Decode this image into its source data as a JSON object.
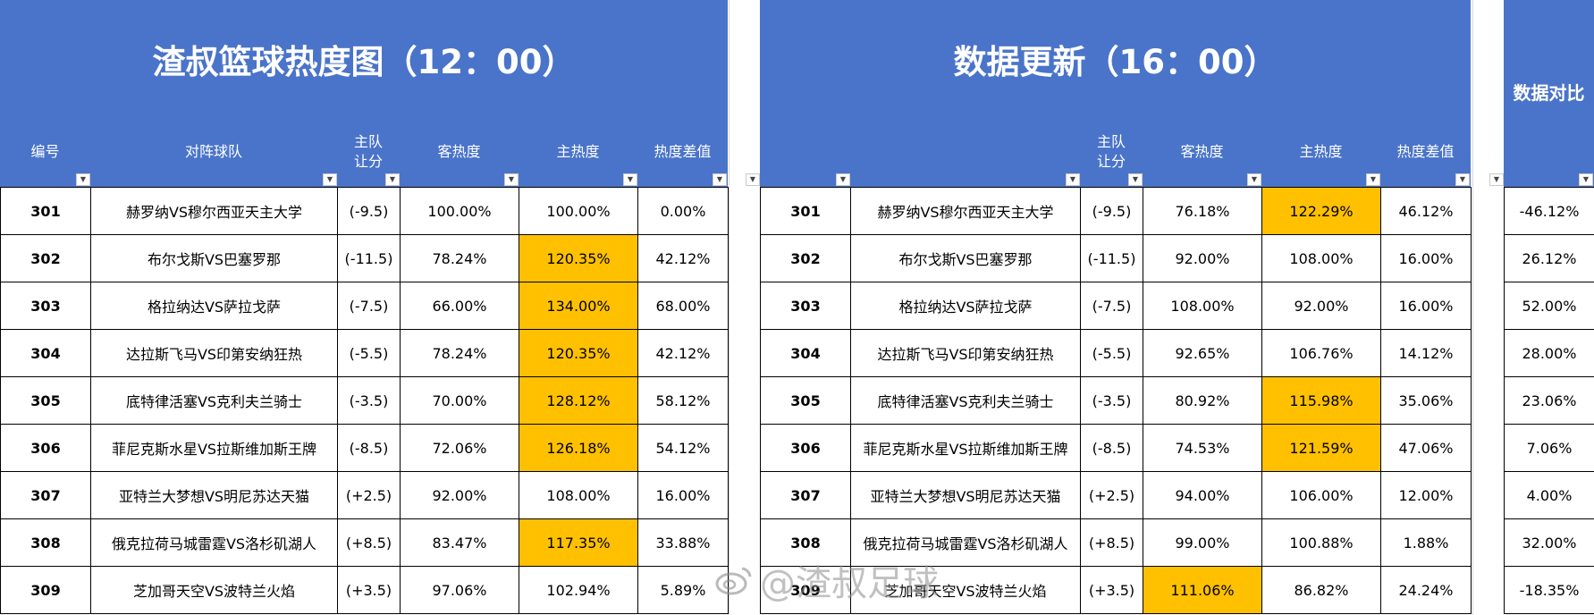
{
  "left": {
    "title": "渣叔篮球热度图（12：00）",
    "headers": [
      "编号",
      "对阵球队",
      "主队\n让分",
      "客热度",
      "主热度",
      "热度差值"
    ],
    "rows": [
      {
        "id": "301",
        "match": "赫罗纳VS穆尔西亚天主大学",
        "handicap": "(-9.5)",
        "away": "100.00%",
        "home": "100.00%",
        "diff": "0.00%"
      },
      {
        "id": "302",
        "match": "布尔戈斯VS巴塞罗那",
        "handicap": "(-11.5)",
        "away": "78.24%",
        "home": "120.35%",
        "diff": "42.12%"
      },
      {
        "id": "303",
        "match": "格拉纳达VS萨拉戈萨",
        "handicap": "(-7.5)",
        "away": "66.00%",
        "home": "134.00%",
        "diff": "68.00%"
      },
      {
        "id": "304",
        "match": "达拉斯飞马VS印第安纳狂热",
        "handicap": "(-5.5)",
        "away": "78.24%",
        "home": "120.35%",
        "diff": "42.12%"
      },
      {
        "id": "305",
        "match": "底特律活塞VS克利夫兰骑士",
        "handicap": "(-3.5)",
        "away": "70.00%",
        "home": "128.12%",
        "diff": "58.12%"
      },
      {
        "id": "306",
        "match": "菲尼克斯水星VS拉斯维加斯王牌",
        "handicap": "(-8.5)",
        "away": "72.06%",
        "home": "126.18%",
        "diff": "54.12%"
      },
      {
        "id": "307",
        "match": "亚特兰大梦想VS明尼苏达天猫",
        "handicap": "(+2.5)",
        "away": "92.00%",
        "home": "108.00%",
        "diff": "16.00%"
      },
      {
        "id": "308",
        "match": "俄克拉荷马城雷霆VS洛杉矶湖人",
        "handicap": "(+8.5)",
        "away": "83.47%",
        "home": "117.35%",
        "diff": "33.88%"
      },
      {
        "id": "309",
        "match": "芝加哥天空VS波特兰火焰",
        "handicap": "(+3.5)",
        "away": "97.06%",
        "home": "102.94%",
        "diff": "5.89%"
      }
    ]
  },
  "right": {
    "title": "数据更新（16：00）",
    "headers": [
      "主队\n让分",
      "客热度",
      "主热度",
      "热度差值"
    ],
    "rows": [
      {
        "id": "301",
        "match": "赫罗纳VS穆尔西亚天主大学",
        "handicap": "(-9.5)",
        "away": "76.18%",
        "home": "122.29%",
        "diff": "46.12%"
      },
      {
        "id": "302",
        "match": "布尔戈斯VS巴塞罗那",
        "handicap": "(-11.5)",
        "away": "92.00%",
        "home": "108.00%",
        "diff": "16.00%"
      },
      {
        "id": "303",
        "match": "格拉纳达VS萨拉戈萨",
        "handicap": "(-7.5)",
        "away": "108.00%",
        "home": "92.00%",
        "diff": "16.00%"
      },
      {
        "id": "304",
        "match": "达拉斯飞马VS印第安纳狂热",
        "handicap": "(-5.5)",
        "away": "92.65%",
        "home": "106.76%",
        "diff": "14.12%"
      },
      {
        "id": "305",
        "match": "底特律活塞VS克利夫兰骑士",
        "handicap": "(-3.5)",
        "away": "80.92%",
        "home": "115.98%",
        "diff": "35.06%"
      },
      {
        "id": "306",
        "match": "菲尼克斯水星VS拉斯维加斯王牌",
        "handicap": "(-8.5)",
        "away": "74.53%",
        "home": "121.59%",
        "diff": "47.06%"
      },
      {
        "id": "307",
        "match": "亚特兰大梦想VS明尼苏达天猫",
        "handicap": "(+2.5)",
        "away": "94.00%",
        "home": "106.00%",
        "diff": "12.00%"
      },
      {
        "id": "308",
        "match": "俄克拉荷马城雷霆VS洛杉矶湖人",
        "handicap": "(+8.5)",
        "away": "99.00%",
        "home": "100.88%",
        "diff": "1.88%"
      },
      {
        "id": "309",
        "match": "芝加哥天空VS波特兰火焰",
        "handicap": "(+3.5)",
        "away": "111.06%",
        "home": "86.82%",
        "diff": "24.24%"
      }
    ]
  },
  "compare": {
    "title": "数据对比",
    "values": [
      "-46.12%",
      "26.12%",
      "52.00%",
      "28.00%",
      "23.06%",
      "7.06%",
      "4.00%",
      "32.00%",
      "-18.35%"
    ]
  },
  "highlight": {
    "left_home": [
      "302",
      "303",
      "304",
      "305",
      "306",
      "308"
    ],
    "right_home": [
      "301",
      "305",
      "306"
    ],
    "right_away": [
      "309"
    ]
  },
  "colors": {
    "header_blue": "#4a74c9",
    "highlight": "#ffc000"
  },
  "watermark": "@渣叔足球"
}
